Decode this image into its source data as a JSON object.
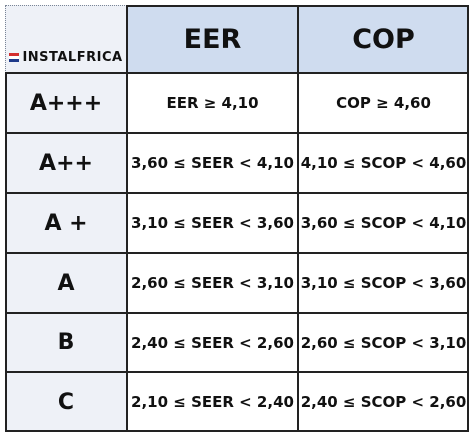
{
  "logo": {
    "text": "INSTALFRICA",
    "flag_colors": [
      "#d32f2f",
      "#ffffff",
      "#1e3a8a"
    ]
  },
  "headers": [
    "EER",
    "COP"
  ],
  "rows": [
    {
      "label": "A+++",
      "eer": "EER ≥ 4,10",
      "cop": "COP ≥ 4,60"
    },
    {
      "label": "A++",
      "eer": "3,60 ≤ SEER < 4,10",
      "cop": "4,10 ≤ SCOP < 4,60"
    },
    {
      "label": "A +",
      "eer": "3,10 ≤ SEER < 3,60",
      "cop": "3,60 ≤ SCOP < 4,10"
    },
    {
      "label": "A",
      "eer": "2,60 ≤ SEER < 3,10",
      "cop": "3,10 ≤ SCOP < 3,60"
    },
    {
      "label": "B",
      "eer": "2,40 ≤ SEER < 2,60",
      "cop": "2,60 ≤ SCOP < 3,10"
    },
    {
      "label": "C",
      "eer": "2,10 ≤ SEER < 2,40",
      "cop": "2,40 ≤ SCOP < 2,60"
    }
  ],
  "colors": {
    "header_bg": "#cfdcef",
    "label_bg": "#eef1f7",
    "grid": "#222222"
  }
}
